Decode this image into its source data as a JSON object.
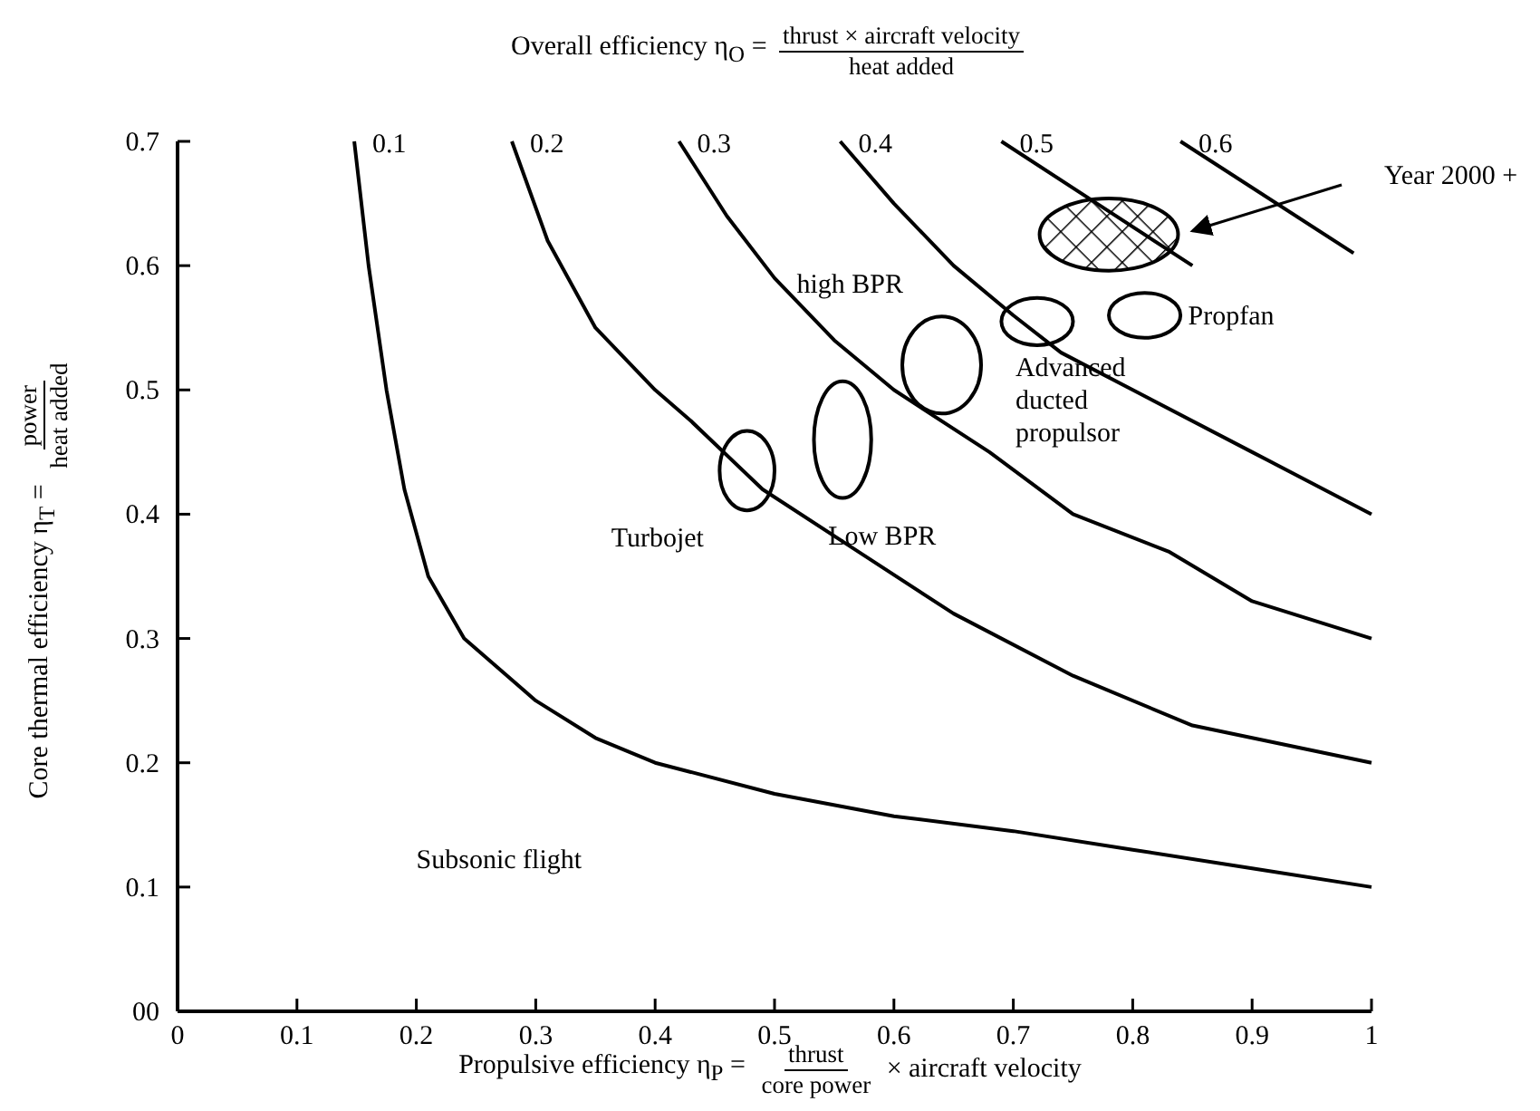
{
  "chart_data": {
    "type": "line",
    "title": "Overall efficiency η$_{O}$ = $^{thrust × aircraft velocity}$$_{heat added}$",
    "xlabel": "Propulsive efficiency η$_{P}$ = $^{thrust}$$_{core power}$ × aircraft velocity",
    "ylabel": "Core thermal efficiency η$_{T}$ = $^{power}$$_{heat added}$",
    "xlim": [
      0,
      1.0
    ],
    "ylim": [
      0,
      0.7
    ],
    "xticks": [
      0,
      0.1,
      0.2,
      0.3,
      0.4,
      0.5,
      0.6,
      0.7,
      0.8,
      0.9,
      1.0
    ],
    "yticks": [
      {
        "value": 0,
        "label": "00"
      },
      0.1,
      0.2,
      0.3,
      0.4,
      0.5,
      0.6,
      0.7
    ],
    "grid": false,
    "legend": false,
    "marker": "none",
    "line_style": "solid",
    "series": [
      {
        "name": "0.1",
        "color": "#000000",
        "x": [
          0.148,
          0.16,
          0.175,
          0.19,
          0.21,
          0.24,
          0.3,
          0.35,
          0.4,
          0.5,
          0.6,
          0.7,
          0.8,
          0.9,
          1.0
        ],
        "values": [
          0.7,
          0.6,
          0.5,
          0.42,
          0.35,
          0.3,
          0.25,
          0.22,
          0.2,
          0.175,
          0.157,
          0.145,
          0.13,
          0.115,
          0.1
        ]
      },
      {
        "name": "0.2",
        "color": "#000000",
        "x": [
          0.28,
          0.31,
          0.35,
          0.4,
          0.43,
          0.49,
          0.57,
          0.65,
          0.75,
          0.85,
          1.0
        ],
        "values": [
          0.7,
          0.62,
          0.55,
          0.5,
          0.475,
          0.42,
          0.37,
          0.32,
          0.27,
          0.23,
          0.2
        ]
      },
      {
        "name": "0.3",
        "color": "#000000",
        "x": [
          0.42,
          0.46,
          0.5,
          0.55,
          0.6,
          0.68,
          0.75,
          0.83,
          0.9,
          1.0
        ],
        "values": [
          0.7,
          0.64,
          0.59,
          0.54,
          0.5,
          0.45,
          0.4,
          0.37,
          0.33,
          0.3
        ]
      },
      {
        "name": "0.4",
        "color": "#000000",
        "x": [
          0.555,
          0.6,
          0.65,
          0.7,
          0.74,
          0.8,
          0.9,
          1.0
        ],
        "values": [
          0.7,
          0.65,
          0.6,
          0.56,
          0.53,
          0.5,
          0.45,
          0.4
        ]
      },
      {
        "name": "0.5",
        "color": "#000000",
        "x": [
          0.69,
          0.77,
          0.85
        ],
        "values": [
          0.7,
          0.65,
          0.6
        ]
      },
      {
        "name": "0.6",
        "color": "#000000",
        "x": [
          0.84,
          0.985
        ],
        "values": [
          0.7,
          0.61
        ]
      }
    ],
    "annotations": [
      "Turbojet",
      "Low BPR",
      "high BPR",
      "Advanced\nducted\npropulsor",
      "Propfan",
      "Year 2000 +",
      "Subsonic flight"
    ]
  }
}
